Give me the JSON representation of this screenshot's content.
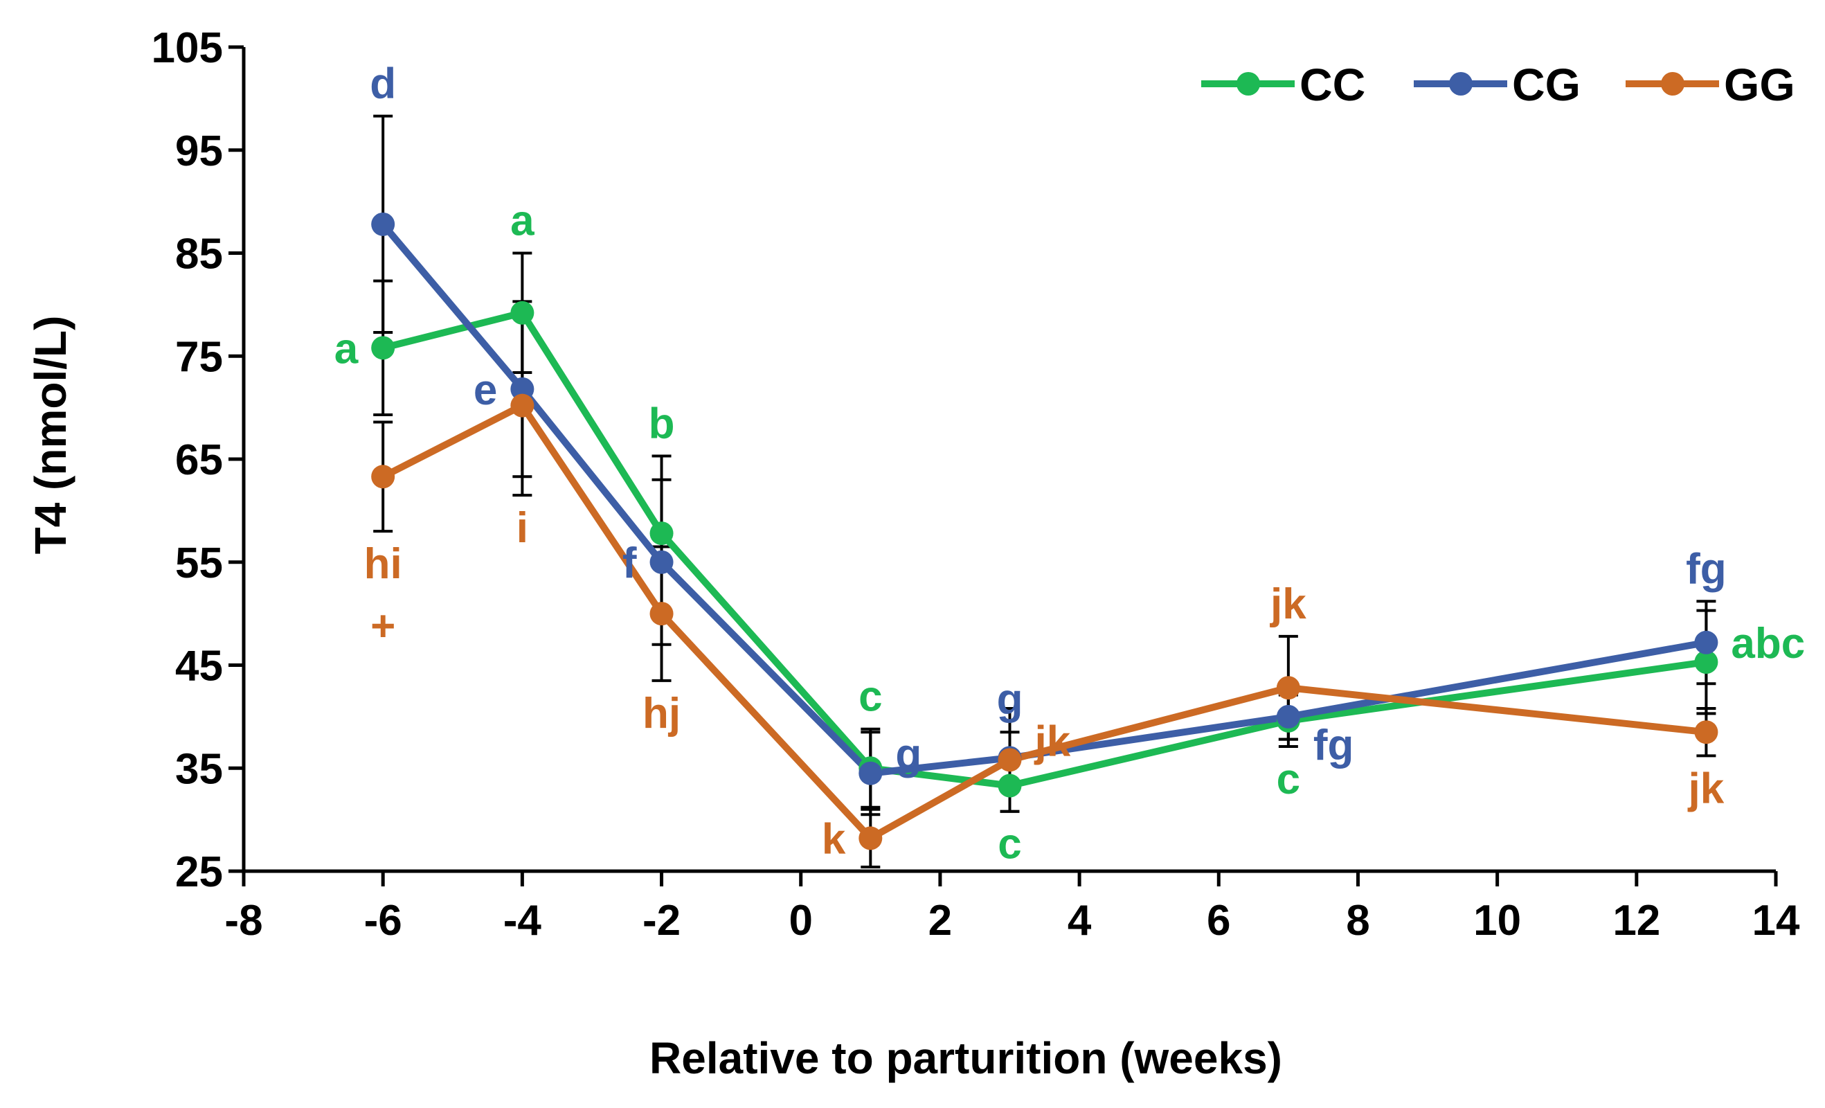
{
  "chart_data": {
    "type": "line",
    "title": "",
    "xlabel": "Relative to parturition (weeks)",
    "ylabel": "T4 (nmol/L)",
    "xlim": [
      -8,
      14
    ],
    "ylim": [
      25,
      105
    ],
    "xticks": [
      "-8",
      "-6",
      "-4",
      "-2",
      "0",
      "2",
      "4",
      "6",
      "8",
      "10",
      "12",
      "14"
    ],
    "yticks": [
      "25",
      "35",
      "45",
      "55",
      "65",
      "75",
      "85",
      "95",
      "105"
    ],
    "grid": false,
    "legend_position": "top-right",
    "x": [
      -6,
      -4,
      -2,
      1,
      3,
      7,
      13
    ],
    "series": [
      {
        "name": "CC",
        "color": "#1db954",
        "values": [
          75.8,
          79.2,
          57.8,
          35.0,
          33.3,
          39.6,
          45.3
        ],
        "error": [
          6.5,
          5.8,
          7.5,
          3.8,
          2.5,
          2.5,
          5.0
        ],
        "letters": [
          {
            "x": -6,
            "text": "a",
            "pos": "left"
          },
          {
            "x": -4,
            "text": "a",
            "pos": "above"
          },
          {
            "x": -2,
            "text": "b",
            "pos": "above"
          },
          {
            "x": 1,
            "text": "c",
            "pos": "above"
          },
          {
            "x": 3,
            "text": "c",
            "pos": "below"
          },
          {
            "x": 7,
            "text": "c",
            "pos": "below"
          },
          {
            "x": 13,
            "text": "abc",
            "pos": "right"
          }
        ]
      },
      {
        "name": "CG",
        "color": "#3d5ea6",
        "values": [
          87.8,
          71.8,
          55.0,
          34.5,
          36.0,
          40.0,
          47.2
        ],
        "error": [
          10.5,
          8.5,
          8.0,
          4.0,
          2.5,
          2.2,
          4.0
        ],
        "letters": [
          {
            "x": -6,
            "text": "d",
            "pos": "above"
          },
          {
            "x": -4,
            "text": "e",
            "pos": "left"
          },
          {
            "x": -2,
            "text": "f",
            "pos": "left"
          },
          {
            "x": 1,
            "text": "g",
            "pos": "right"
          },
          {
            "x": 3,
            "text": "g",
            "pos": "above"
          },
          {
            "x": 7,
            "text": "fg",
            "pos": "right-below"
          },
          {
            "x": 13,
            "text": "fg",
            "pos": "above"
          }
        ]
      },
      {
        "name": "GG",
        "color": "#cc6a24",
        "values": [
          63.3,
          70.2,
          50.0,
          28.2,
          35.8,
          42.8,
          38.5
        ],
        "error": [
          5.3,
          8.7,
          6.5,
          2.8,
          5.0,
          5.0,
          2.3
        ],
        "letters": [
          {
            "x": -6,
            "text": "hi",
            "pos": "below"
          },
          {
            "x": -6,
            "text": "+",
            "pos": "below2"
          },
          {
            "x": -4,
            "text": "i",
            "pos": "below"
          },
          {
            "x": -2,
            "text": "hj",
            "pos": "below"
          },
          {
            "x": 1,
            "text": "k",
            "pos": "left"
          },
          {
            "x": 3,
            "text": "jk",
            "pos": "right"
          },
          {
            "x": 7,
            "text": "jk",
            "pos": "above"
          },
          {
            "x": 13,
            "text": "jk",
            "pos": "below"
          }
        ]
      }
    ]
  }
}
